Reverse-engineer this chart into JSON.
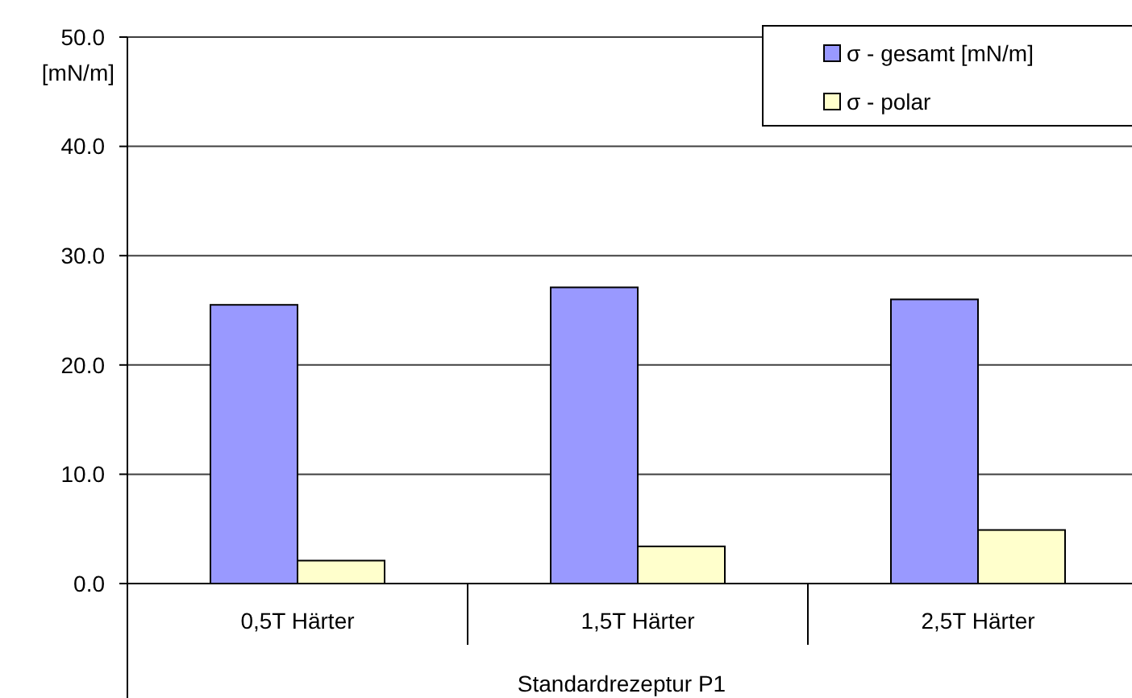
{
  "chart_data": {
    "type": "bar",
    "xlabel": "Standardrezeptur P1",
    "ylabel": "[mN/m]",
    "categories": [
      "0,5T Härter",
      "1,5T Härter",
      "2,5T Härter"
    ],
    "series": [
      {
        "name": "σ - gesamt [mN/m]",
        "color": "#9999ff",
        "values": [
          25.5,
          27.1,
          26.0
        ]
      },
      {
        "name": "σ - polar",
        "color": "#ffffcc",
        "values": [
          2.1,
          3.4,
          4.9
        ]
      }
    ],
    "ylim": [
      0,
      50
    ],
    "yticks": [
      {
        "value": 0,
        "label": "0.0"
      },
      {
        "value": 10,
        "label": "10.0"
      },
      {
        "value": 20,
        "label": "20.0"
      },
      {
        "value": 30,
        "label": "30.0"
      },
      {
        "value": 40,
        "label": "40.0"
      },
      {
        "value": 50,
        "label": "50.0"
      }
    ],
    "grid": "y",
    "legend": "top right"
  }
}
